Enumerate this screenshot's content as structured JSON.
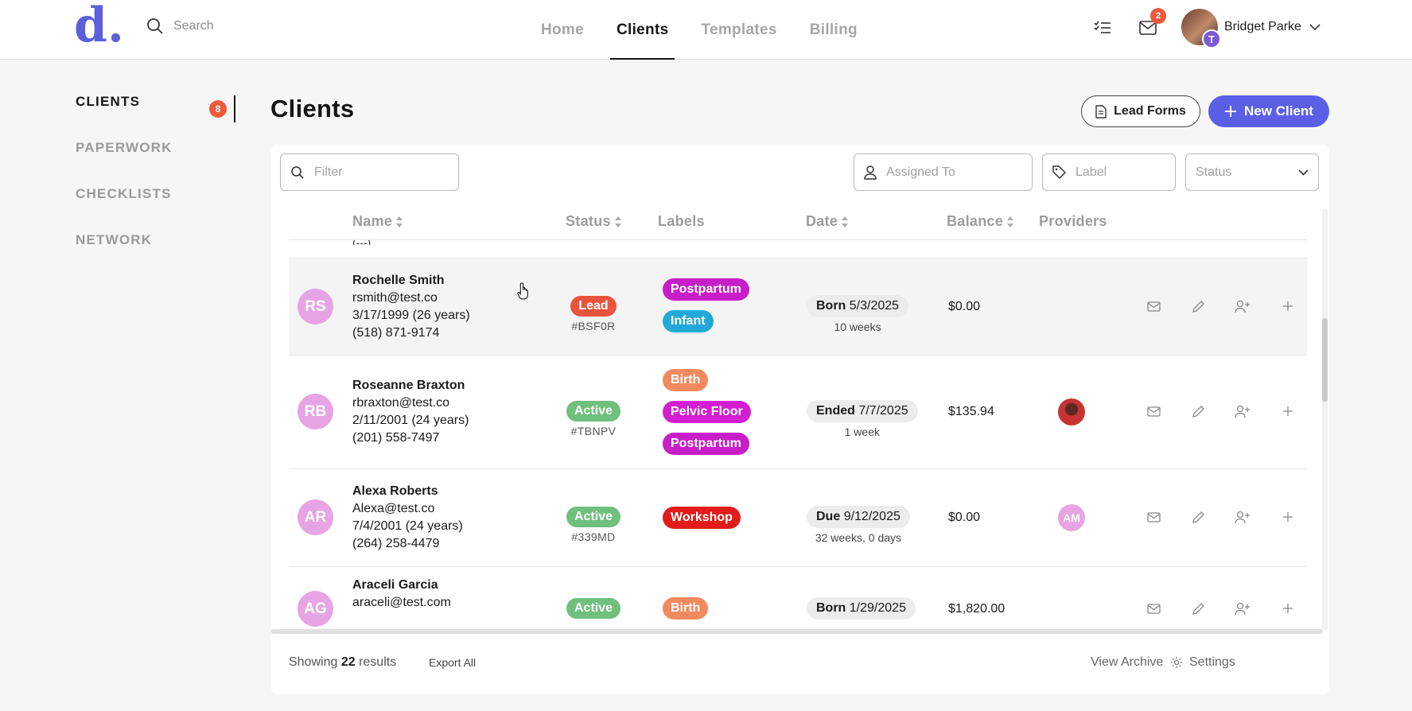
{
  "brand": {
    "logo_text": "d."
  },
  "header": {
    "search_placeholder": "Search",
    "nav": [
      "Home",
      "Clients",
      "Templates",
      "Billing"
    ],
    "active_nav": "Clients",
    "mail_badge": "2",
    "user_name": "Bridget Parke",
    "user_badge": "T"
  },
  "sidebar": {
    "items": [
      "CLIENTS",
      "PAPERWORK",
      "CHECKLISTS",
      "NETWORK"
    ],
    "clients_badge": "8"
  },
  "main": {
    "title": "Clients",
    "lead_forms_label": "Lead Forms",
    "new_client_label": "New Client"
  },
  "filters": {
    "filter_placeholder": "Filter",
    "assigned_placeholder": "Assigned To",
    "label_placeholder": "Label",
    "status_placeholder": "Status"
  },
  "table": {
    "columns": [
      "Name",
      "Status",
      "Labels",
      "Date",
      "Balance",
      "Providers"
    ],
    "partial_row_text": "(---)",
    "rows": [
      {
        "initials": "RS",
        "name": "Rochelle Smith",
        "email": "rsmith@test.co",
        "dob": "3/17/1999 (26 years)",
        "phone": "(518) 871-9174",
        "status": "Lead",
        "status_code": "#BSF0R",
        "labels": [
          "Postpartum",
          "Infant"
        ],
        "date_type": "Born",
        "date": "5/3/2025",
        "date_sub": "10 weeks",
        "balance": "$0.00"
      },
      {
        "initials": "RB",
        "name": "Roseanne Braxton",
        "email": "rbraxton@test.co",
        "dob": "2/11/2001 (24 years)",
        "phone": "(201) 558-7497",
        "status": "Active",
        "status_code": "#TBNPV",
        "labels": [
          "Birth",
          "Pelvic Floor",
          "Postpartum"
        ],
        "date_type": "Ended",
        "date": "7/7/2025",
        "date_sub": "1 week",
        "balance": "$135.94"
      },
      {
        "initials": "AR",
        "name": "Alexa Roberts",
        "email": "Alexa@test.co",
        "dob": "7/4/2001 (24 years)",
        "phone": "(264) 258-4479",
        "status": "Active",
        "status_code": "#339MD",
        "labels": [
          "Workshop"
        ],
        "date_type": "Due",
        "date": "9/12/2025",
        "date_sub": "32 weeks, 0 days",
        "balance": "$0.00",
        "provider_initials": "AM"
      },
      {
        "initials": "AG",
        "name": "Araceli Garcia",
        "email": "araceli@test.com",
        "status": "Active",
        "labels": [
          "Birth"
        ],
        "date_type": "Born",
        "date": "1/29/2025",
        "balance": "$1,820.00"
      }
    ]
  },
  "footer": {
    "showing_prefix": "Showing",
    "count": "22",
    "showing_suffix": "results",
    "export_label": "Export All",
    "archive_label": "View Archive",
    "settings_label": "Settings"
  },
  "colors": {
    "accent": "#5b5fe6",
    "badge": "#ef5a3c",
    "status_lead": "#e8553c",
    "status_active": "#6fbf7d",
    "label_postpartum": "#c81ec8",
    "label_infant": "#22a9d8",
    "label_birth": "#f28a5e",
    "label_pelvic_floor": "#d41ed3",
    "label_workshop": "#e21b1b"
  }
}
